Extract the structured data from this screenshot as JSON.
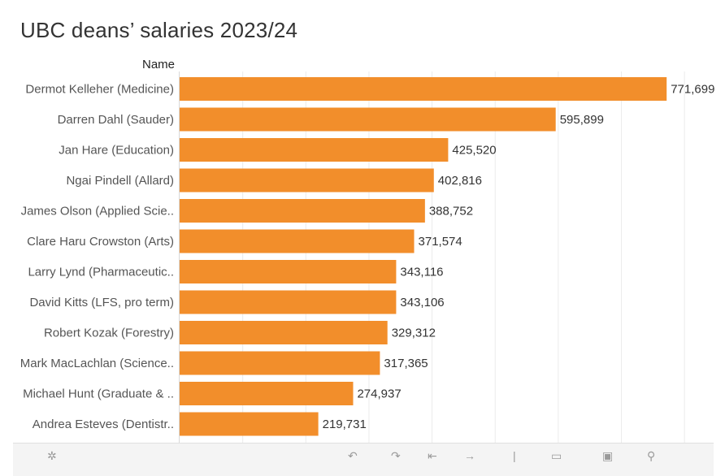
{
  "chart_data": {
    "type": "bar",
    "orientation": "horizontal",
    "title": "UBC deans’ salaries 2023/24",
    "category_header": "Name",
    "categories": [
      "Dermot Kelleher (Medicine)",
      "Darren Dahl (Sauder)",
      "Jan Hare (Education)",
      "Ngai Pindell (Allard)",
      "James Olson (Applied Scie..",
      "Clare Haru Crowston (Arts)",
      "Larry Lynd (Pharmaceutic..",
      "David Kitts (LFS, pro term)",
      "Robert Kozak (Forestry)",
      "Mark MacLachlan (Science..",
      "Michael Hunt (Graduate & ..",
      "Andrea Esteves (Dentistr.."
    ],
    "values": [
      771699,
      595899,
      425520,
      402816,
      388752,
      371574,
      343116,
      343106,
      329312,
      317365,
      274937,
      219731
    ],
    "value_labels": [
      "771,699",
      "595,899",
      "425,520",
      "402,816",
      "388,752",
      "371,574",
      "343,116",
      "343,106",
      "329,312",
      "317,365",
      "274,937",
      "219,731"
    ],
    "xlim": [
      0,
      800000
    ],
    "grid": true,
    "bar_color": "#f28e2b",
    "gridline_color": "#ebebeb"
  },
  "toolbar": {
    "color": "#9a9a9a"
  }
}
